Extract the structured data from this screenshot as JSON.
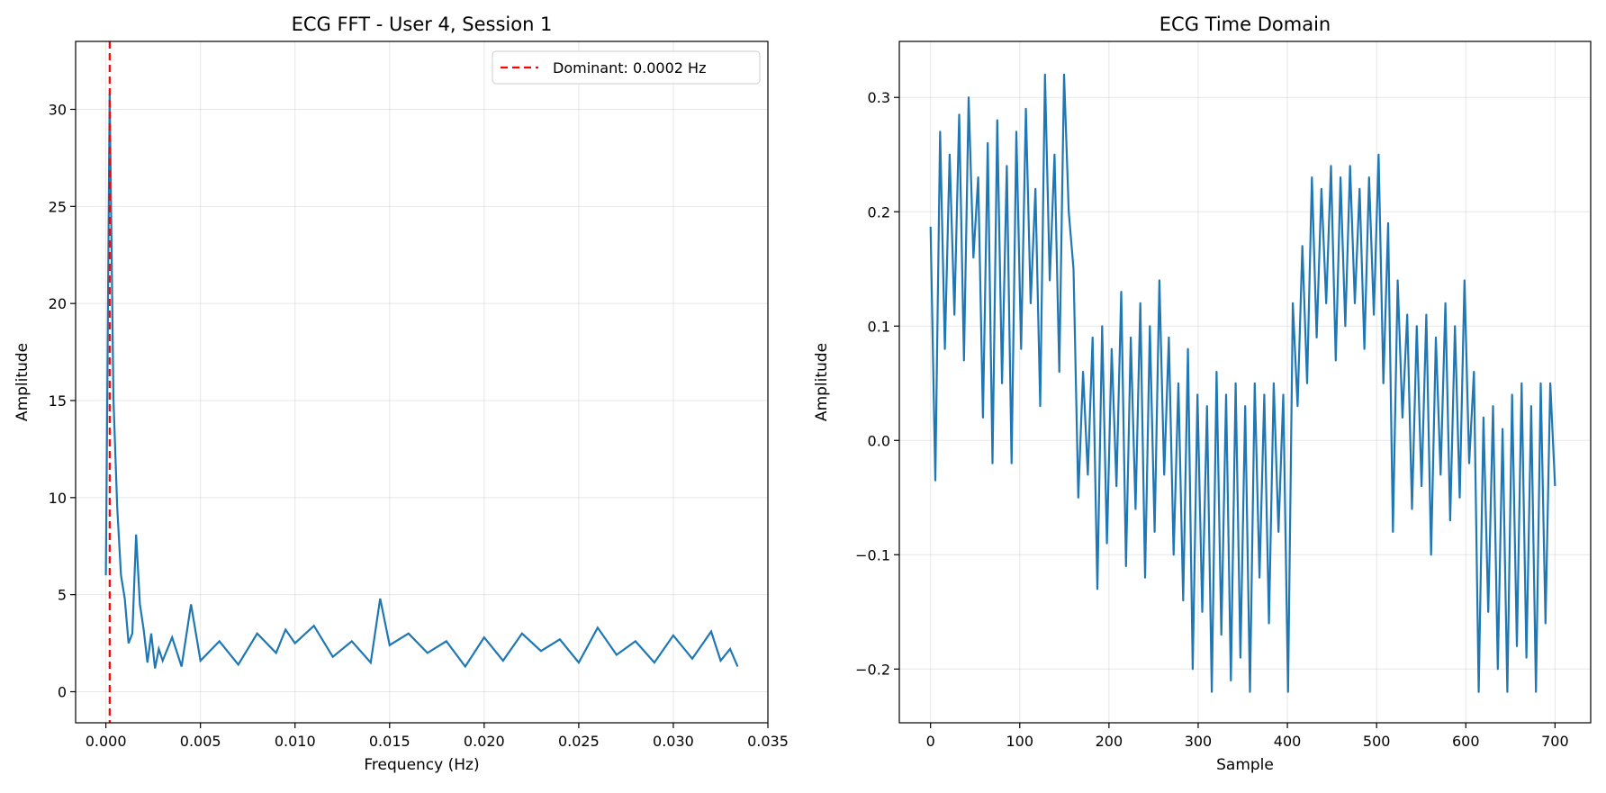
{
  "chart_data": [
    {
      "type": "line",
      "title": "ECG FFT - User 4, Session 1",
      "xlabel": "Frequency (Hz)",
      "ylabel": "Amplitude",
      "xlim": [
        -0.0016,
        0.035
      ],
      "ylim": [
        -1.6,
        33.5
      ],
      "xticks": [
        0.0,
        0.005,
        0.01,
        0.015,
        0.02,
        0.025,
        0.03,
        0.035
      ],
      "xtick_labels": [
        "0.000",
        "0.005",
        "0.010",
        "0.015",
        "0.020",
        "0.025",
        "0.030",
        "0.035"
      ],
      "yticks": [
        0,
        5,
        10,
        15,
        20,
        25,
        30
      ],
      "ytick_labels": [
        "0",
        "5",
        "10",
        "15",
        "20",
        "25",
        "30"
      ],
      "grid": true,
      "legend": "top-right",
      "series_color": "#1f77b4",
      "vline": {
        "x": 0.0002,
        "label": "Dominant: 0.0002 Hz",
        "color": "#ff0000",
        "style": "dashed"
      },
      "series": [
        {
          "x": [
            0.0,
            0.0002,
            0.0004,
            0.0006,
            0.0008,
            0.001,
            0.0012,
            0.0014,
            0.0016,
            0.0018,
            0.002,
            0.0022,
            0.0024,
            0.0026,
            0.0028,
            0.003,
            0.0035,
            0.004,
            0.0045,
            0.005,
            0.006,
            0.007,
            0.008,
            0.009,
            0.0095,
            0.01,
            0.011,
            0.012,
            0.013,
            0.014,
            0.0145,
            0.015,
            0.016,
            0.017,
            0.018,
            0.019,
            0.02,
            0.021,
            0.022,
            0.023,
            0.024,
            0.025,
            0.026,
            0.027,
            0.028,
            0.029,
            0.03,
            0.031,
            0.032,
            0.0325,
            0.033,
            0.0334
          ],
          "y": [
            6.0,
            30.8,
            15.1,
            9.5,
            6.0,
            4.8,
            2.5,
            3.0,
            8.1,
            4.5,
            3.2,
            1.5,
            3.0,
            1.2,
            2.2,
            1.6,
            2.8,
            1.3,
            4.5,
            1.6,
            2.6,
            1.4,
            3.0,
            2.0,
            3.2,
            2.5,
            3.4,
            1.8,
            2.6,
            1.5,
            4.8,
            2.4,
            3.0,
            2.0,
            2.6,
            1.3,
            2.8,
            1.6,
            3.0,
            2.1,
            2.7,
            1.5,
            3.3,
            1.9,
            2.6,
            1.5,
            2.9,
            1.7,
            3.1,
            1.6,
            2.2,
            1.3
          ]
        }
      ]
    },
    {
      "type": "line",
      "title": "ECG Time Domain",
      "xlabel": "Sample",
      "ylabel": "Amplitude",
      "xlim": [
        -35,
        740
      ],
      "ylim": [
        -0.247,
        0.349
      ],
      "xticks": [
        0,
        100,
        200,
        300,
        400,
        500,
        600,
        700
      ],
      "xtick_labels": [
        "0",
        "100",
        "200",
        "300",
        "400",
        "500",
        "600",
        "700"
      ],
      "yticks": [
        -0.2,
        -0.1,
        0.0,
        0.1,
        0.2,
        0.3
      ],
      "ytick_labels": [
        "−0.2",
        "−0.1",
        "0.0",
        "0.1",
        "0.2",
        "0.3"
      ],
      "grid": true,
      "series_color": "#1f77b4",
      "series": [
        {
          "x_start": 0,
          "x_step": 1,
          "y": [
            0.187,
            -0.035,
            0.27,
            0.08,
            0.25,
            0.11,
            0.285,
            0.07,
            0.3,
            0.16,
            0.23,
            0.02,
            0.26,
            -0.02,
            0.28,
            0.05,
            0.24,
            -0.02,
            0.27,
            0.08,
            0.29,
            0.12,
            0.22,
            0.03,
            0.32,
            0.14,
            0.25,
            0.06,
            0.32,
            0.2,
            0.15,
            -0.05,
            0.06,
            -0.03,
            0.09,
            -0.13,
            0.1,
            -0.09,
            0.08,
            -0.04,
            0.13,
            -0.11,
            0.09,
            -0.06,
            0.12,
            -0.12,
            0.1,
            -0.08,
            0.14,
            -0.03,
            0.09,
            -0.1,
            0.05,
            -0.14,
            0.08,
            -0.2,
            0.04,
            -0.15,
            0.03,
            -0.22,
            0.06,
            -0.17,
            0.04,
            -0.21,
            0.05,
            -0.19,
            0.03,
            -0.22,
            0.05,
            -0.12,
            0.04,
            -0.16,
            0.05,
            -0.08,
            0.04,
            -0.22,
            0.12,
            0.03,
            0.17,
            0.05,
            0.23,
            0.09,
            0.22,
            0.12,
            0.24,
            0.07,
            0.23,
            0.1,
            0.24,
            0.12,
            0.22,
            0.08,
            0.23,
            0.11,
            0.25,
            0.05,
            0.19,
            -0.08,
            0.14,
            0.02,
            0.11,
            -0.06,
            0.1,
            -0.04,
            0.11,
            -0.1,
            0.09,
            -0.03,
            0.12,
            -0.07,
            0.1,
            -0.05,
            0.14,
            -0.02,
            0.06,
            -0.22,
            0.02,
            -0.15,
            0.03,
            -0.2,
            0.01,
            -0.22,
            0.04,
            -0.18,
            0.05,
            -0.19,
            0.03,
            -0.22,
            0.05,
            -0.16,
            0.05,
            -0.04
          ]
        }
      ]
    }
  ]
}
